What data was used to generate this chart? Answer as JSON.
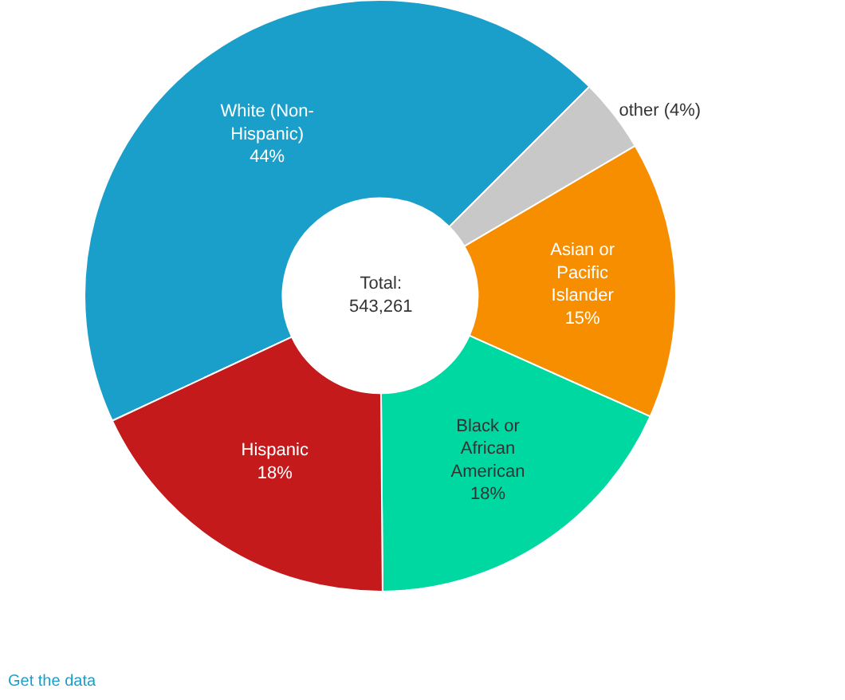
{
  "chart_data": {
    "type": "donut",
    "categories": [
      "White (Non-Hispanic)",
      "other",
      "Asian or Pacific Islander",
      "Black or African American",
      "Hispanic"
    ],
    "values": [
      44,
      4,
      15,
      18,
      18
    ],
    "value_labels": [
      "44%",
      "(4%)",
      "15%",
      "18%",
      "18%"
    ],
    "colors": [
      "#1a9fcb",
      "#c8c8c8",
      "#f78e00",
      "#00d8a2",
      "#c41a1c"
    ],
    "annotations": [
      "Total:\n543,261",
      "Get the data"
    ],
    "legend": false
  }
}
